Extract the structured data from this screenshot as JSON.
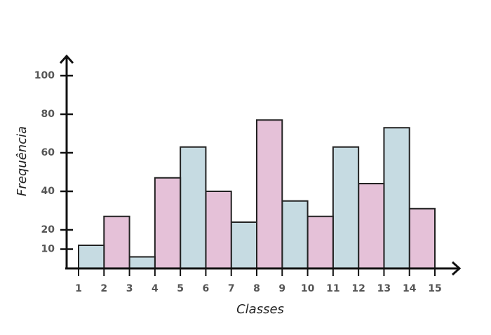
{
  "chart_data": {
    "type": "histogram",
    "x_label": "Classes",
    "y_label": "Frequência",
    "bins": [
      1,
      2,
      3,
      4,
      5,
      6,
      7,
      8,
      9,
      10,
      11,
      12,
      13,
      14,
      15
    ],
    "values": [
      12,
      27,
      6,
      47,
      63,
      40,
      24,
      77,
      35,
      27,
      63,
      44,
      73,
      31
    ],
    "colors": [
      "#c6dbe2",
      "#e5c1d8",
      "#c6dbe2",
      "#e5c1d8",
      "#c6dbe2",
      "#e5c1d8",
      "#c6dbe2",
      "#e5c1d8",
      "#c6dbe2",
      "#e5c1d8",
      "#c6dbe2",
      "#e5c1d8",
      "#c6dbe2",
      "#e5c1d8"
    ],
    "xlim": [
      1,
      15
    ],
    "xticks": [
      1,
      2,
      3,
      4,
      5,
      6,
      7,
      8,
      9,
      10,
      11,
      12,
      13,
      14,
      15
    ],
    "ylim": [
      0,
      100
    ],
    "yticks": [
      10,
      20,
      40,
      60,
      80,
      100
    ],
    "grid": false
  }
}
